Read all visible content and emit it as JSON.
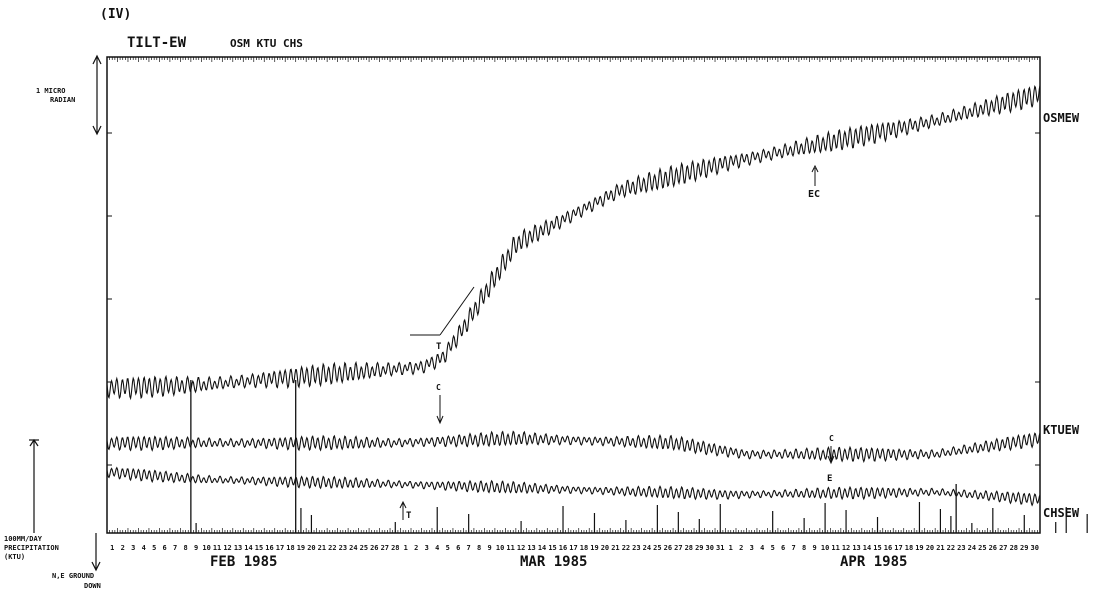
{
  "figure": {
    "panel_label": "(IV)",
    "title": "TILT-EW",
    "stations_caption": "OSM KTU CHS",
    "scale_label_line1": "1 MICRO",
    "scale_label_line2": "RADIAN",
    "precip_label_line1": "100MM/DAY",
    "precip_label_line2": "PRECIPITATION",
    "precip_label_line3": "(KTU)",
    "ground_label_line1": "N,E GROUND",
    "ground_label_line2": "DOWN",
    "months": [
      "FEB 1985",
      "MAR 1985",
      "APR 1985"
    ],
    "annotations": {
      "ec": "EC",
      "t_upper": "T",
      "c_upper": "C",
      "c_lower": "C",
      "e_lower": "E",
      "t_lower": "T"
    }
  },
  "chart_data": {
    "type": "line",
    "title": "TILT-EW",
    "series": [
      {
        "name": "OSMEW",
        "values_note": "tilt trace",
        "trend": [
          [
            1,
            0.0
          ],
          [
            10,
            0.05
          ],
          [
            20,
            0.2
          ],
          [
            31,
            0.35
          ],
          [
            33,
            0.5
          ],
          [
            35,
            1.0
          ],
          [
            40,
            2.4
          ],
          [
            50,
            3.3
          ],
          [
            60,
            3.75
          ],
          [
            70,
            4.1
          ],
          [
            80,
            4.45
          ],
          [
            90,
            4.9
          ]
        ]
      },
      {
        "name": "KTUEW",
        "trend": [
          [
            1,
            0.0
          ],
          [
            28,
            0.0
          ],
          [
            40,
            0.1
          ],
          [
            55,
            0.0
          ],
          [
            62,
            -0.25
          ],
          [
            80,
            -0.25
          ],
          [
            90,
            0.1
          ]
        ]
      },
      {
        "name": "CHSEW",
        "trend": [
          [
            1,
            0.0
          ],
          [
            10,
            -0.15
          ],
          [
            30,
            -0.25
          ],
          [
            60,
            -0.45
          ],
          [
            80,
            -0.4
          ],
          [
            90,
            -0.55
          ]
        ]
      }
    ],
    "x_unit": "day",
    "x_range": [
      "1985-02-01",
      "1985-04-30"
    ],
    "precipitation_ktu_days": [
      9,
      19,
      20,
      28,
      32,
      35,
      40,
      44,
      47,
      50,
      53,
      55,
      57,
      59,
      64,
      67,
      69,
      71,
      74,
      78,
      80,
      81,
      83,
      85,
      88,
      91,
      92,
      94
    ],
    "day_labels": {
      "feb": [
        "1",
        "2",
        "3",
        "4",
        "5",
        "6",
        "7",
        "8",
        "9",
        "10",
        "11",
        "12",
        "13",
        "14",
        "15",
        "16",
        "17",
        "18",
        "19",
        "20",
        "21",
        "22",
        "23",
        "24",
        "25",
        "26",
        "27",
        "28"
      ],
      "mar": [
        "1",
        "2",
        "3",
        "4",
        "5",
        "6",
        "7",
        "8",
        "9",
        "10",
        "11",
        "12",
        "13",
        "14",
        "15",
        "16",
        "17",
        "18",
        "19",
        "20",
        "21",
        "22",
        "23",
        "24",
        "25",
        "26",
        "27",
        "28",
        "29",
        "30",
        "31"
      ],
      "apr": [
        "1",
        "2",
        "3",
        "4",
        "5",
        "6",
        "7",
        "8",
        "9",
        "10",
        "11",
        "12",
        "13",
        "14",
        "15",
        "16",
        "17",
        "18",
        "19",
        "20",
        "21",
        "22",
        "23",
        "24",
        "25",
        "26",
        "27",
        "28",
        "29",
        "30"
      ]
    },
    "grid": false
  }
}
